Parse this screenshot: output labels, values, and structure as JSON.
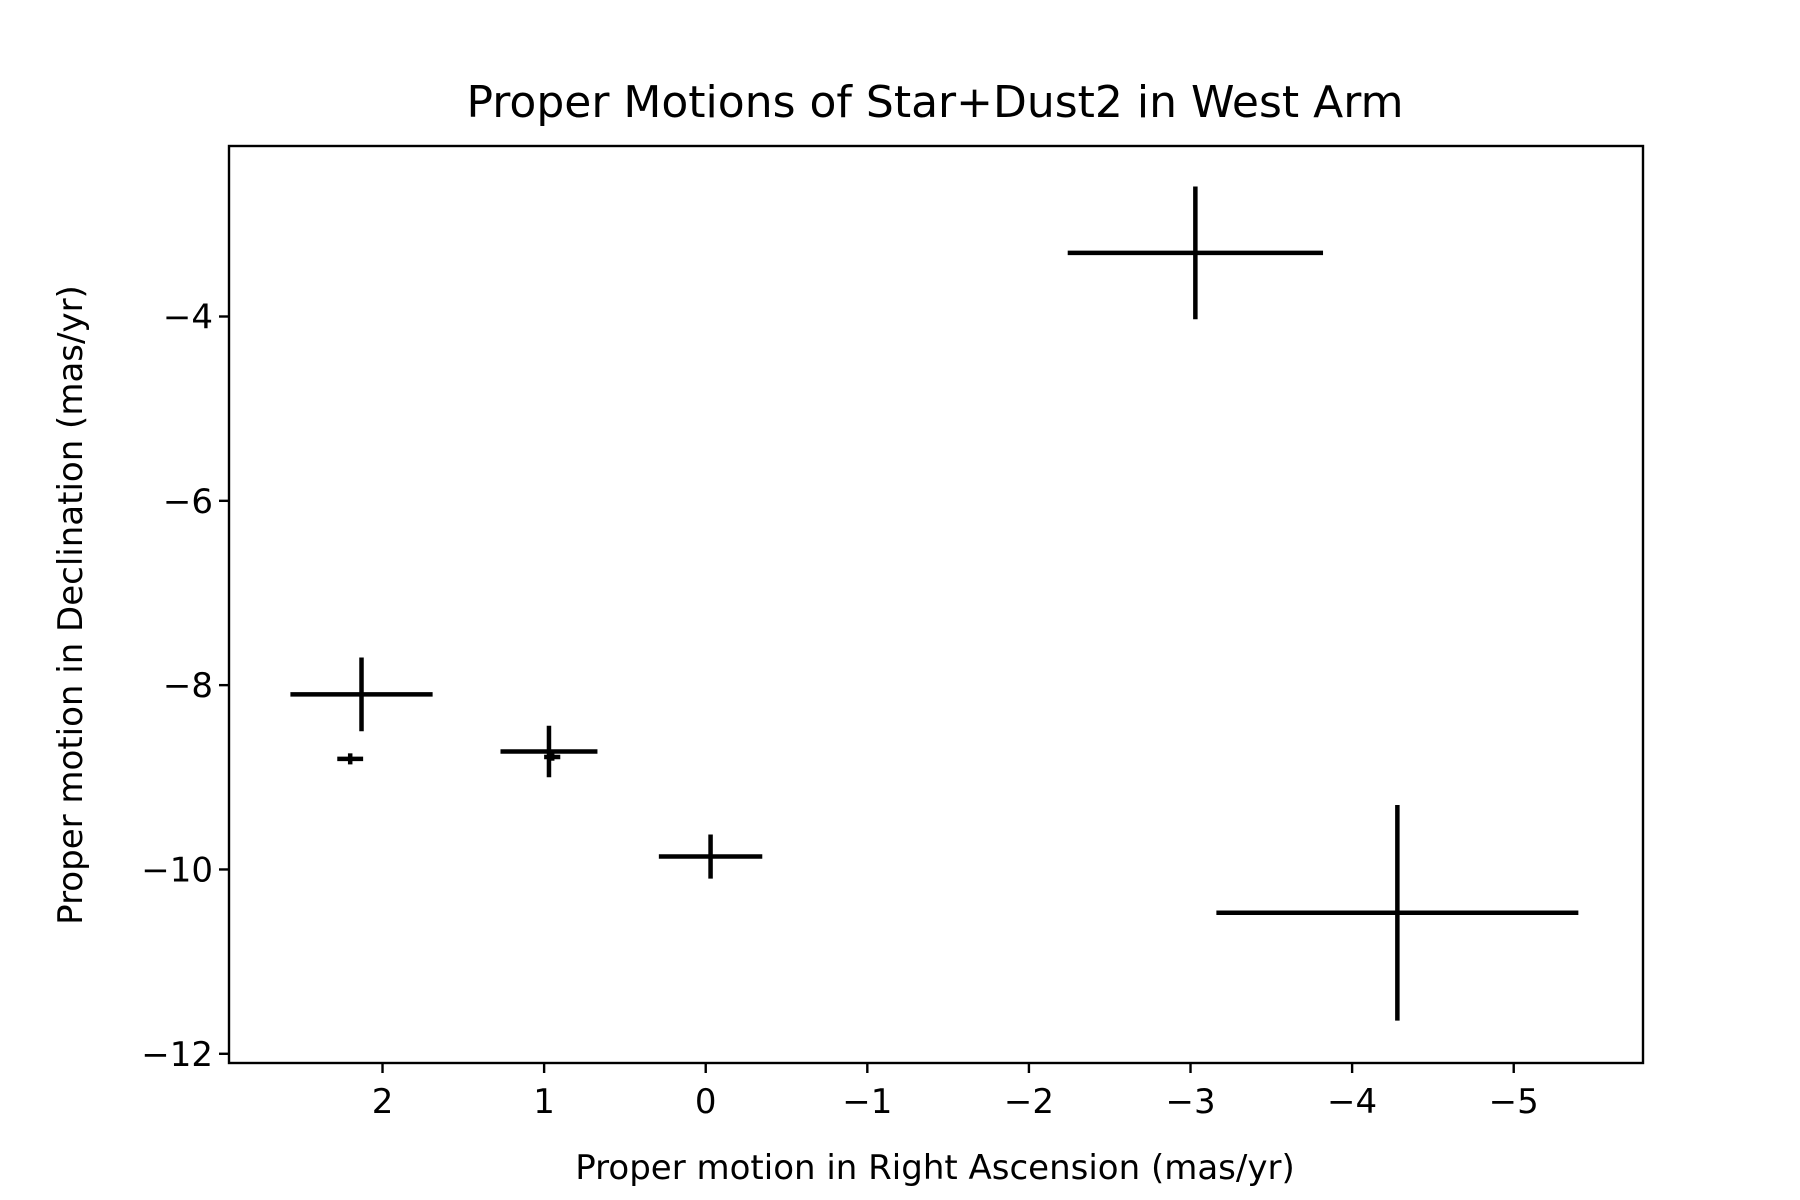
{
  "chart_data": {
    "type": "scatter",
    "title": "Proper Motions of Star+Dust2 in West Arm",
    "xlabel": "Proper motion in Right Ascension (mas/yr)",
    "ylabel": "Proper motion in Declination (mas/yr)",
    "xlim": [
      2.95,
      -5.8
    ],
    "ylim": [
      -12.1,
      -2.15
    ],
    "x_ticks": [
      2,
      1,
      0,
      -1,
      -2,
      -3,
      -4,
      -5
    ],
    "x_tick_labels": [
      "2",
      "1",
      "0",
      "−1",
      "−2",
      "−3",
      "−4",
      "−5"
    ],
    "y_ticks": [
      -4,
      -6,
      -8,
      -10,
      -12
    ],
    "y_tick_labels": [
      "−4",
      "−6",
      "−8",
      "−10",
      "−12"
    ],
    "grid": false,
    "color": "#000000",
    "series": [
      {
        "name": "Star+Dust2 West Arm",
        "points": [
          {
            "x": -3.03,
            "y": -3.31,
            "xerr": 0.79,
            "yerr": 0.72
          },
          {
            "x": 2.13,
            "y": -8.1,
            "xerr": 0.44,
            "yerr": 0.4
          },
          {
            "x": 2.2,
            "y": -8.8,
            "xerr": 0.08,
            "yerr": 0.06
          },
          {
            "x": 0.97,
            "y": -8.72,
            "xerr": 0.3,
            "yerr": 0.28
          },
          {
            "x": 0.95,
            "y": -8.78,
            "xerr": 0.05,
            "yerr": 0.04
          },
          {
            "x": -0.03,
            "y": -9.86,
            "xerr": 0.32,
            "yerr": 0.24
          },
          {
            "x": -4.28,
            "y": -10.47,
            "xerr": 1.12,
            "yerr": 1.17
          }
        ]
      }
    ]
  }
}
